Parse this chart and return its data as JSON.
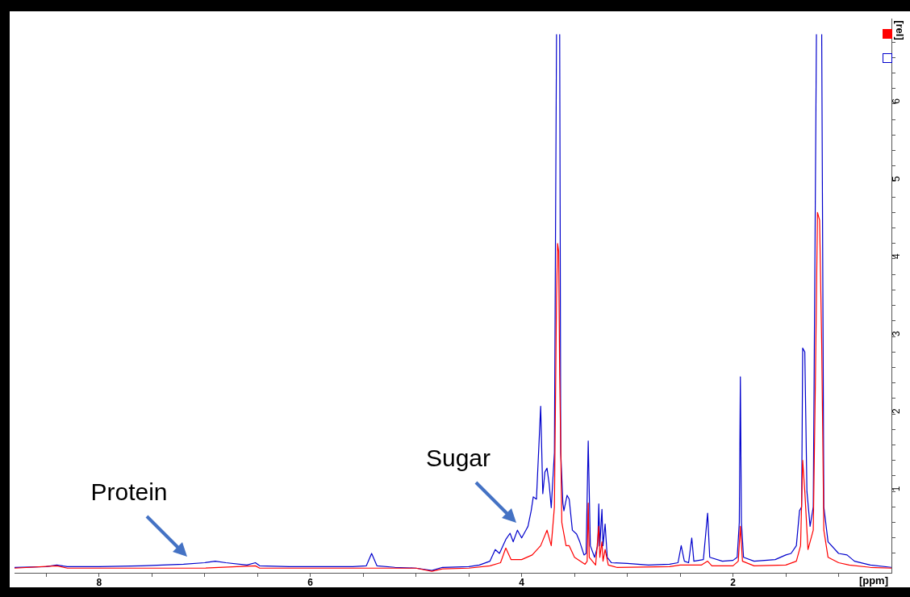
{
  "chart_data": {
    "type": "line",
    "xlabel": "[ppm]",
    "ylabel": "[rel]",
    "xlim": [
      8.8,
      0.5
    ],
    "xticks": [
      {
        "value": 8.5,
        "label": null
      },
      8,
      {
        "value": 7.5,
        "label": null
      },
      {
        "value": 7,
        "label": null
      },
      {
        "value": 6.5,
        "label": null
      },
      6,
      {
        "value": 5.5,
        "label": null
      },
      {
        "value": 5,
        "label": null
      },
      {
        "value": 4.5,
        "label": null
      },
      4,
      {
        "value": 3.5,
        "label": null
      },
      {
        "value": 3,
        "label": null
      },
      {
        "value": 2.5,
        "label": null
      },
      2,
      {
        "value": 1.5,
        "label": null
      },
      {
        "value": 1,
        "label": null
      }
    ],
    "ylim": [
      -0.05,
      7.1
    ],
    "yticks": [
      {
        "value": 0.2,
        "label": null
      },
      {
        "value": 0.4,
        "label": null
      },
      {
        "value": 0.6,
        "label": null
      },
      {
        "value": 0.8,
        "label": null
      },
      1,
      {
        "value": 1.2,
        "label": null
      },
      {
        "value": 1.4,
        "label": null
      },
      {
        "value": 1.6,
        "label": null
      },
      {
        "value": 1.8,
        "label": null
      },
      2,
      {
        "value": 2.2,
        "label": null
      },
      {
        "value": 2.4,
        "label": null
      },
      {
        "value": 2.6,
        "label": null
      },
      {
        "value": 2.8,
        "label": null
      },
      3,
      {
        "value": 3.2,
        "label": null
      },
      {
        "value": 3.4,
        "label": null
      },
      {
        "value": 3.6,
        "label": null
      },
      {
        "value": 3.8,
        "label": null
      },
      4,
      {
        "value": 4.2,
        "label": null
      },
      {
        "value": 4.4,
        "label": null
      },
      {
        "value": 4.6,
        "label": null
      },
      {
        "value": 4.8,
        "label": null
      },
      5,
      {
        "value": 5.2,
        "label": null
      },
      {
        "value": 5.4,
        "label": null
      },
      {
        "value": 5.6,
        "label": null
      },
      {
        "value": 5.8,
        "label": null
      },
      6,
      {
        "value": 6.2,
        "label": null
      },
      {
        "value": 6.4,
        "label": null
      },
      {
        "value": 6.6,
        "label": null
      },
      {
        "value": 6.8,
        "label": null
      }
    ],
    "grid": false,
    "legend": false,
    "marker": "none",
    "line_style": "solid",
    "annotations": [
      "Protein",
      "Sugar"
    ],
    "series": [
      {
        "color": "#ff0000",
        "x": [
          8.8,
          8.4,
          8.3,
          7.0,
          6.52,
          6.48,
          5.0,
          4.85,
          4.75,
          4.5,
          4.3,
          4.2,
          4.15,
          4.1,
          4.0,
          3.9,
          3.82,
          3.76,
          3.72,
          3.69,
          3.67,
          3.66,
          3.65,
          3.64,
          3.62,
          3.58,
          3.55,
          3.5,
          3.4,
          3.38,
          3.37,
          3.36,
          3.3,
          3.27,
          3.26,
          3.24,
          3.23,
          3.21,
          3.18,
          3.1,
          2.6,
          2.5,
          2.3,
          2.24,
          2.2,
          2.0,
          1.95,
          1.93,
          1.91,
          1.8,
          1.5,
          1.4,
          1.36,
          1.34,
          1.32,
          1.29,
          1.24,
          1.22,
          1.2,
          1.18,
          1.16,
          1.14,
          1.1,
          1.0,
          0.9,
          0.7,
          0.5
        ],
        "values": [
          0.01,
          0.04,
          0.01,
          0.01,
          0.04,
          0.01,
          0.01,
          -0.03,
          0.0,
          0.01,
          0.04,
          0.08,
          0.27,
          0.12,
          0.12,
          0.18,
          0.3,
          0.5,
          0.3,
          0.8,
          3.5,
          4.2,
          4.1,
          2.5,
          0.6,
          0.3,
          0.3,
          0.15,
          0.06,
          0.1,
          0.85,
          0.15,
          0.05,
          0.55,
          0.15,
          0.35,
          0.1,
          0.25,
          0.05,
          0.02,
          0.03,
          0.05,
          0.05,
          0.1,
          0.04,
          0.04,
          0.1,
          0.55,
          0.1,
          0.04,
          0.05,
          0.1,
          0.3,
          1.4,
          1.0,
          0.25,
          0.5,
          2.4,
          4.6,
          4.5,
          2.9,
          0.5,
          0.15,
          0.08,
          0.05,
          0.02,
          0.01
        ]
      },
      {
        "color": "#0000cc",
        "x": [
          8.8,
          8.5,
          8.4,
          8.3,
          8.0,
          7.6,
          7.4,
          7.2,
          7.0,
          6.9,
          6.8,
          6.6,
          6.52,
          6.48,
          6.2,
          5.9,
          5.6,
          5.47,
          5.42,
          5.37,
          5.2,
          5.0,
          4.85,
          4.75,
          4.5,
          4.4,
          4.3,
          4.25,
          4.21,
          4.15,
          4.11,
          4.08,
          4.04,
          4.0,
          3.96,
          3.94,
          3.91,
          3.89,
          3.86,
          3.82,
          3.8,
          3.78,
          3.76,
          3.74,
          3.72,
          3.69,
          3.67,
          3.66,
          3.65,
          3.64,
          3.63,
          3.61,
          3.6,
          3.57,
          3.55,
          3.52,
          3.48,
          3.45,
          3.41,
          3.39,
          3.37,
          3.35,
          3.31,
          3.28,
          3.27,
          3.26,
          3.24,
          3.23,
          3.21,
          3.19,
          3.15,
          3.0,
          2.8,
          2.6,
          2.52,
          2.49,
          2.46,
          2.42,
          2.39,
          2.37,
          2.28,
          2.24,
          2.22,
          2.1,
          2.0,
          1.96,
          1.94,
          1.93,
          1.92,
          1.9,
          1.8,
          1.6,
          1.5,
          1.45,
          1.4,
          1.37,
          1.35,
          1.34,
          1.32,
          1.3,
          1.27,
          1.24,
          1.21,
          1.2,
          1.18,
          1.16,
          1.14,
          1.1,
          1.0,
          0.92,
          0.85,
          0.7,
          0.5
        ],
        "values": [
          0.02,
          0.03,
          0.05,
          0.03,
          0.03,
          0.04,
          0.05,
          0.06,
          0.08,
          0.1,
          0.08,
          0.05,
          0.08,
          0.04,
          0.03,
          0.03,
          0.03,
          0.04,
          0.2,
          0.04,
          0.02,
          0.01,
          -0.02,
          0.02,
          0.03,
          0.05,
          0.1,
          0.25,
          0.2,
          0.38,
          0.46,
          0.35,
          0.5,
          0.4,
          0.5,
          0.55,
          0.75,
          0.93,
          0.9,
          2.1,
          0.97,
          1.25,
          1.3,
          1.1,
          0.79,
          1.5,
          6.9,
          null,
          null,
          6.9,
          1.5,
          0.85,
          0.75,
          0.95,
          0.9,
          0.5,
          0.45,
          0.35,
          0.18,
          0.2,
          1.65,
          0.3,
          0.15,
          0.3,
          0.84,
          0.3,
          0.77,
          0.3,
          0.58,
          0.15,
          0.08,
          0.07,
          0.05,
          0.06,
          0.08,
          0.3,
          0.1,
          0.08,
          0.4,
          0.1,
          0.12,
          0.72,
          0.15,
          0.1,
          0.11,
          0.15,
          0.6,
          2.48,
          0.6,
          0.15,
          0.1,
          0.12,
          0.18,
          0.2,
          0.3,
          0.75,
          0.8,
          2.85,
          2.8,
          1.0,
          0.55,
          0.8,
          6.9,
          null,
          null,
          6.9,
          0.8,
          0.35,
          0.2,
          0.18,
          0.1,
          0.05,
          0.02
        ]
      }
    ]
  }
}
